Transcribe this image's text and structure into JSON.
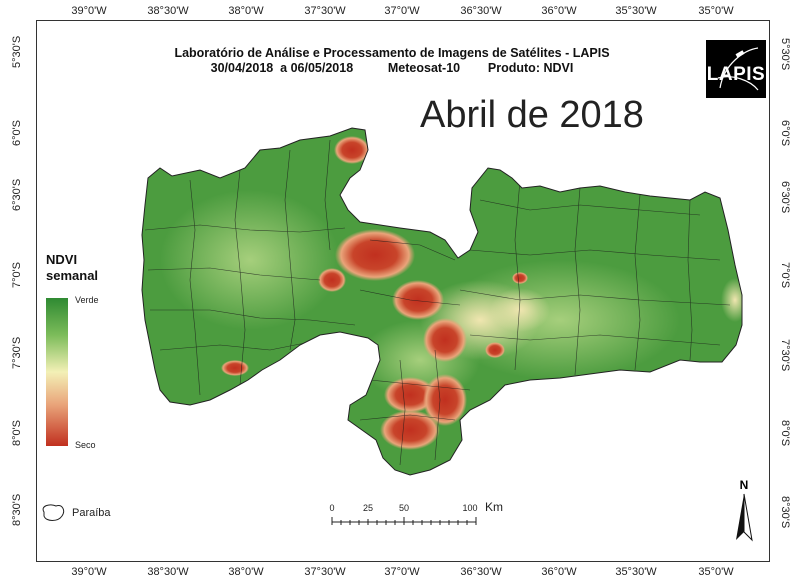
{
  "title": {
    "line1": "Laboratório de Análise e Processamento de Imagens de Satélites - LAPIS",
    "line2": "30/04/2018  a 06/05/2018          Meteosat-10        Produto: NDVI"
  },
  "month_label": "Abril de 2018",
  "logo_text": "LAPIS",
  "legend": {
    "title_line1": "NDVI",
    "title_line2": "semanal",
    "high_label": "Verde",
    "low_label": "Seco",
    "colors": [
      "#2f8a32",
      "#7cbc5a",
      "#f3f0b6",
      "#e9a47a",
      "#c1301f"
    ]
  },
  "inset_label": "Paraíba",
  "scale_bar": {
    "ticks": [
      "0",
      "25",
      "50",
      "100"
    ],
    "unit": "Km"
  },
  "north_label": "N",
  "longitude_ticks": [
    "39°0'W",
    "38°30'W",
    "38°0'W",
    "37°30'W",
    "37°0'W",
    "36°30'W",
    "36°0'W",
    "35°30'W",
    "35°0'W"
  ],
  "latitude_ticks": [
    "5°30'S",
    "6°0'S",
    "6°30'S",
    "7°0'S",
    "7°30'S",
    "8°0'S",
    "8°30'S"
  ]
}
